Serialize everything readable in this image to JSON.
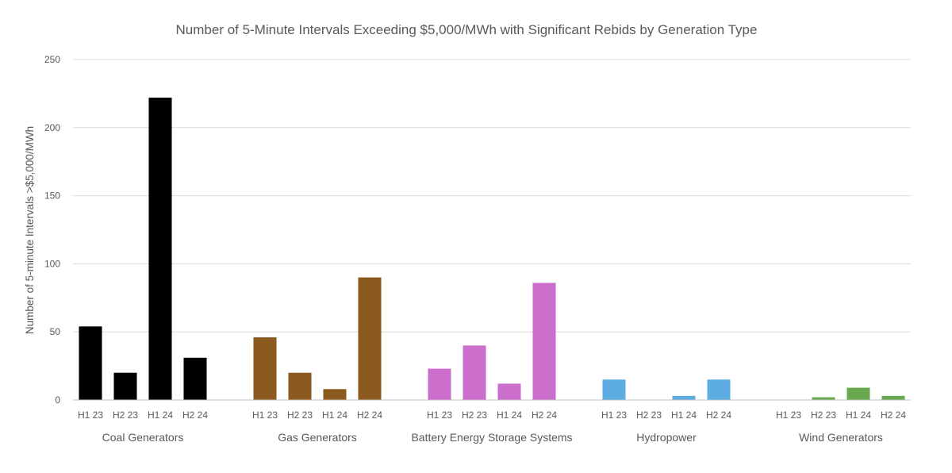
{
  "chart_data": {
    "type": "bar",
    "title": "Number of 5-Minute Intervals Exceeding $5,000/MWh with Significant Rebids by Generation Type",
    "xlabel": "",
    "ylabel": "Number of 5-minute Intervals >$5,000/MWh",
    "ylim": [
      0,
      250
    ],
    "yticks": [
      0,
      50,
      100,
      150,
      200,
      250
    ],
    "grid": true,
    "legend": "none",
    "periods": [
      "H1 23",
      "H2 23",
      "H1 24",
      "H2 24"
    ],
    "groups": [
      {
        "name": "Coal Generators",
        "color": "#000000",
        "values": [
          54,
          20,
          222,
          31
        ]
      },
      {
        "name": "Gas Generators",
        "color": "#8b5a1e",
        "values": [
          46,
          20,
          8,
          90
        ]
      },
      {
        "name": "Battery Energy Storage Systems",
        "color": "#cc6ecc",
        "values": [
          23,
          40,
          12,
          86
        ]
      },
      {
        "name": "Hydropower",
        "color": "#5dade2",
        "values": [
          15,
          0,
          3,
          15
        ]
      },
      {
        "name": "Wind Generators",
        "color": "#6aa84f",
        "values": [
          0,
          2,
          9,
          3
        ]
      }
    ]
  }
}
